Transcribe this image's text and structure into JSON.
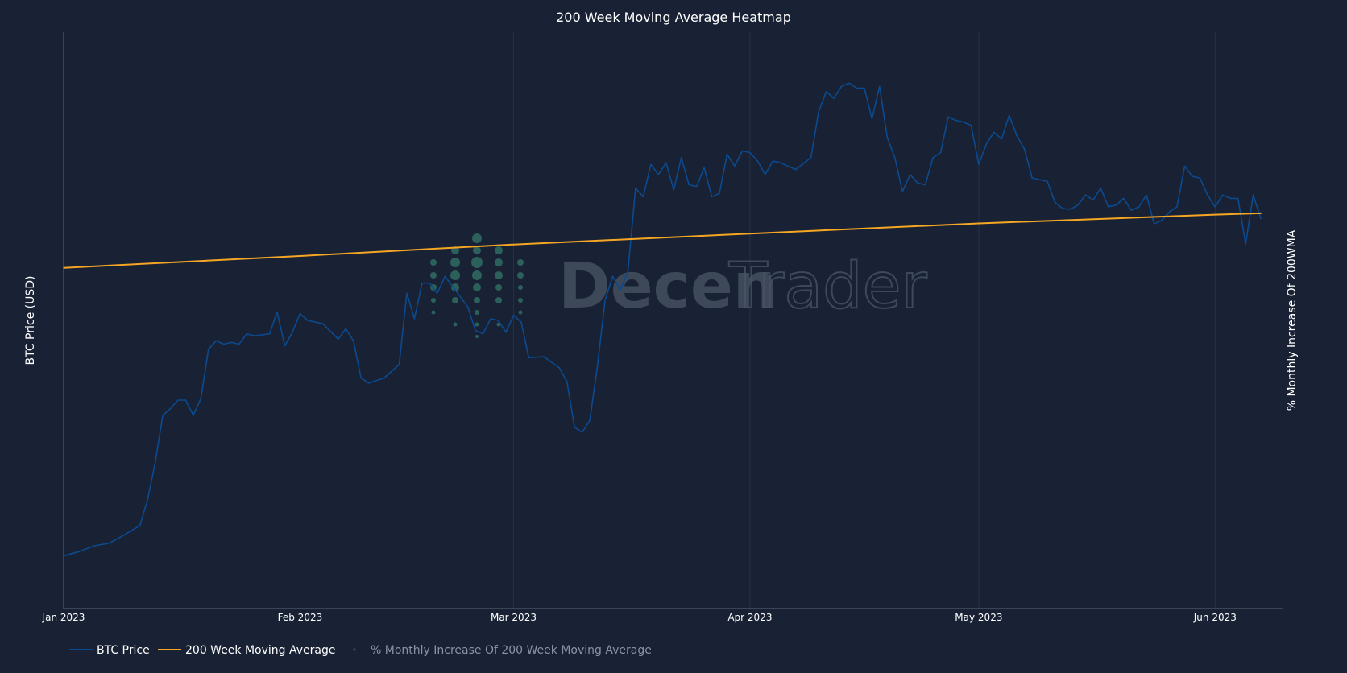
{
  "colors": {
    "background": "#192235",
    "btc_price": "#0b4a8f",
    "wma": "#f5a623",
    "grid": "#273145",
    "axis": "#5a6578",
    "watermark": "#4a5566",
    "watermark_dots": "#2f6b62"
  },
  "watermark": {
    "bold": "Decen",
    "light": "Trader"
  },
  "legend": {
    "btc": "BTC Price",
    "wma": "200 Week Moving Average",
    "pct": "% Monthly Increase Of 200 Week Moving Average"
  },
  "chart_data": {
    "type": "line",
    "title": "200 Week Moving Average Heatmap",
    "ylabel": "BTC Price (USD)",
    "y2label": "% Monthly Increase Of 200WMA",
    "xlabel": "",
    "x_ticks": [
      "Jan 2023",
      "Feb 2023",
      "Mar 2023",
      "Apr 2023",
      "May 2023",
      "Jun 2023"
    ],
    "x_tick_dates": [
      "2023-01-01",
      "2023-02-01",
      "2023-03-01",
      "2023-04-01",
      "2023-05-01",
      "2023-06-01"
    ],
    "x_range": [
      "2023-01-01",
      "2023-06-06"
    ],
    "y_ticks_visible": false,
    "ylim": [
      15000,
      32000
    ],
    "grid": true,
    "legend_position": "bottom-left",
    "series": [
      {
        "name": "BTC Price",
        "color": "#0b4a8f",
        "points": [
          [
            "2023-01-01",
            16550
          ],
          [
            "2023-01-03",
            16680
          ],
          [
            "2023-01-05",
            16850
          ],
          [
            "2023-01-07",
            16930
          ],
          [
            "2023-01-09",
            17180
          ],
          [
            "2023-01-11",
            17450
          ],
          [
            "2023-01-12",
            18200
          ],
          [
            "2023-01-13",
            19300
          ],
          [
            "2023-01-14",
            20700
          ],
          [
            "2023-01-15",
            20900
          ],
          [
            "2023-01-16",
            21150
          ],
          [
            "2023-01-17",
            21150
          ],
          [
            "2023-01-18",
            20700
          ],
          [
            "2023-01-19",
            21200
          ],
          [
            "2023-01-20",
            22650
          ],
          [
            "2023-01-21",
            22900
          ],
          [
            "2023-01-22",
            22800
          ],
          [
            "2023-01-23",
            22850
          ],
          [
            "2023-01-24",
            22800
          ],
          [
            "2023-01-25",
            23100
          ],
          [
            "2023-01-26",
            23050
          ],
          [
            "2023-01-28",
            23100
          ],
          [
            "2023-01-29",
            23750
          ],
          [
            "2023-01-30",
            22750
          ],
          [
            "2023-01-31",
            23150
          ],
          [
            "2023-02-01",
            23700
          ],
          [
            "2023-02-02",
            23500
          ],
          [
            "2023-02-04",
            23400
          ],
          [
            "2023-02-06",
            22950
          ],
          [
            "2023-02-07",
            23250
          ],
          [
            "2023-02-08",
            22900
          ],
          [
            "2023-02-09",
            21800
          ],
          [
            "2023-02-10",
            21650
          ],
          [
            "2023-02-12",
            21800
          ],
          [
            "2023-02-14",
            22200
          ],
          [
            "2023-02-15",
            24300
          ],
          [
            "2023-02-16",
            23550
          ],
          [
            "2023-02-17",
            24600
          ],
          [
            "2023-02-18",
            24600
          ],
          [
            "2023-02-19",
            24300
          ],
          [
            "2023-02-20",
            24800
          ],
          [
            "2023-02-21",
            24500
          ],
          [
            "2023-02-22",
            24200
          ],
          [
            "2023-02-23",
            23900
          ],
          [
            "2023-02-24",
            23200
          ],
          [
            "2023-02-25",
            23100
          ],
          [
            "2023-02-26",
            23550
          ],
          [
            "2023-02-27",
            23500
          ],
          [
            "2023-02-28",
            23150
          ],
          [
            "2023-03-01",
            23650
          ],
          [
            "2023-03-02",
            23450
          ],
          [
            "2023-03-03",
            22400
          ],
          [
            "2023-03-05",
            22430
          ],
          [
            "2023-03-07",
            22100
          ],
          [
            "2023-03-08",
            21700
          ],
          [
            "2023-03-09",
            20350
          ],
          [
            "2023-03-10",
            20200
          ],
          [
            "2023-03-11",
            20550
          ],
          [
            "2023-03-12",
            22150
          ],
          [
            "2023-03-13",
            24100
          ],
          [
            "2023-03-14",
            24800
          ],
          [
            "2023-03-15",
            24400
          ],
          [
            "2023-03-16",
            24950
          ],
          [
            "2023-03-17",
            27400
          ],
          [
            "2023-03-18",
            27150
          ],
          [
            "2023-03-19",
            28100
          ],
          [
            "2023-03-20",
            27800
          ],
          [
            "2023-03-21",
            28150
          ],
          [
            "2023-03-22",
            27350
          ],
          [
            "2023-03-23",
            28300
          ],
          [
            "2023-03-24",
            27500
          ],
          [
            "2023-03-25",
            27450
          ],
          [
            "2023-03-26",
            28000
          ],
          [
            "2023-03-27",
            27150
          ],
          [
            "2023-03-28",
            27250
          ],
          [
            "2023-03-29",
            28400
          ],
          [
            "2023-03-30",
            28050
          ],
          [
            "2023-03-31",
            28500
          ],
          [
            "2023-04-01",
            28450
          ],
          [
            "2023-04-02",
            28200
          ],
          [
            "2023-04-03",
            27800
          ],
          [
            "2023-04-04",
            28200
          ],
          [
            "2023-04-05",
            28150
          ],
          [
            "2023-04-07",
            27950
          ],
          [
            "2023-04-09",
            28300
          ],
          [
            "2023-04-10",
            29650
          ],
          [
            "2023-04-11",
            30250
          ],
          [
            "2023-04-12",
            30050
          ],
          [
            "2023-04-13",
            30400
          ],
          [
            "2023-04-14",
            30500
          ],
          [
            "2023-04-15",
            30350
          ],
          [
            "2023-04-16",
            30350
          ],
          [
            "2023-04-17",
            29450
          ],
          [
            "2023-04-18",
            30400
          ],
          [
            "2023-04-19",
            28900
          ],
          [
            "2023-04-20",
            28300
          ],
          [
            "2023-04-21",
            27300
          ],
          [
            "2023-04-22",
            27800
          ],
          [
            "2023-04-23",
            27550
          ],
          [
            "2023-04-24",
            27500
          ],
          [
            "2023-04-25",
            28300
          ],
          [
            "2023-04-26",
            28450
          ],
          [
            "2023-04-27",
            29500
          ],
          [
            "2023-04-28",
            29400
          ],
          [
            "2023-04-29",
            29350
          ],
          [
            "2023-04-30",
            29250
          ],
          [
            "2023-05-01",
            28100
          ],
          [
            "2023-05-02",
            28700
          ],
          [
            "2023-05-03",
            29050
          ],
          [
            "2023-05-04",
            28850
          ],
          [
            "2023-05-05",
            29550
          ],
          [
            "2023-05-06",
            28950
          ],
          [
            "2023-05-07",
            28550
          ],
          [
            "2023-05-08",
            27700
          ],
          [
            "2023-05-09",
            27650
          ],
          [
            "2023-05-10",
            27600
          ],
          [
            "2023-05-11",
            26980
          ],
          [
            "2023-05-12",
            26800
          ],
          [
            "2023-05-13",
            26780
          ],
          [
            "2023-05-14",
            26900
          ],
          [
            "2023-05-15",
            27200
          ],
          [
            "2023-05-16",
            27050
          ],
          [
            "2023-05-17",
            27400
          ],
          [
            "2023-05-18",
            26850
          ],
          [
            "2023-05-19",
            26900
          ],
          [
            "2023-05-20",
            27100
          ],
          [
            "2023-05-21",
            26750
          ],
          [
            "2023-05-22",
            26850
          ],
          [
            "2023-05-23",
            27200
          ],
          [
            "2023-05-24",
            26350
          ],
          [
            "2023-05-25",
            26450
          ],
          [
            "2023-05-26",
            26700
          ],
          [
            "2023-05-27",
            26850
          ],
          [
            "2023-05-28",
            28050
          ],
          [
            "2023-05-29",
            27750
          ],
          [
            "2023-05-30",
            27700
          ],
          [
            "2023-05-31",
            27200
          ],
          [
            "2023-06-01",
            26850
          ],
          [
            "2023-06-02",
            27200
          ],
          [
            "2023-06-03",
            27100
          ],
          [
            "2023-06-04",
            27100
          ],
          [
            "2023-06-05",
            25750
          ],
          [
            "2023-06-06",
            27200
          ],
          [
            "2023-06-07",
            26500
          ]
        ]
      },
      {
        "name": "200 Week Moving Average",
        "color": "#f5a623",
        "points": [
          [
            "2023-01-01",
            25050
          ],
          [
            "2023-02-01",
            25400
          ],
          [
            "2023-03-01",
            25740
          ],
          [
            "2023-04-01",
            26060
          ],
          [
            "2023-05-01",
            26360
          ],
          [
            "2023-06-01",
            26620
          ],
          [
            "2023-06-07",
            26660
          ]
        ]
      },
      {
        "name": "% Monthly Increase Of 200 Week Moving Average",
        "color": "#2e3a4e",
        "hidden": true,
        "points": []
      }
    ]
  }
}
